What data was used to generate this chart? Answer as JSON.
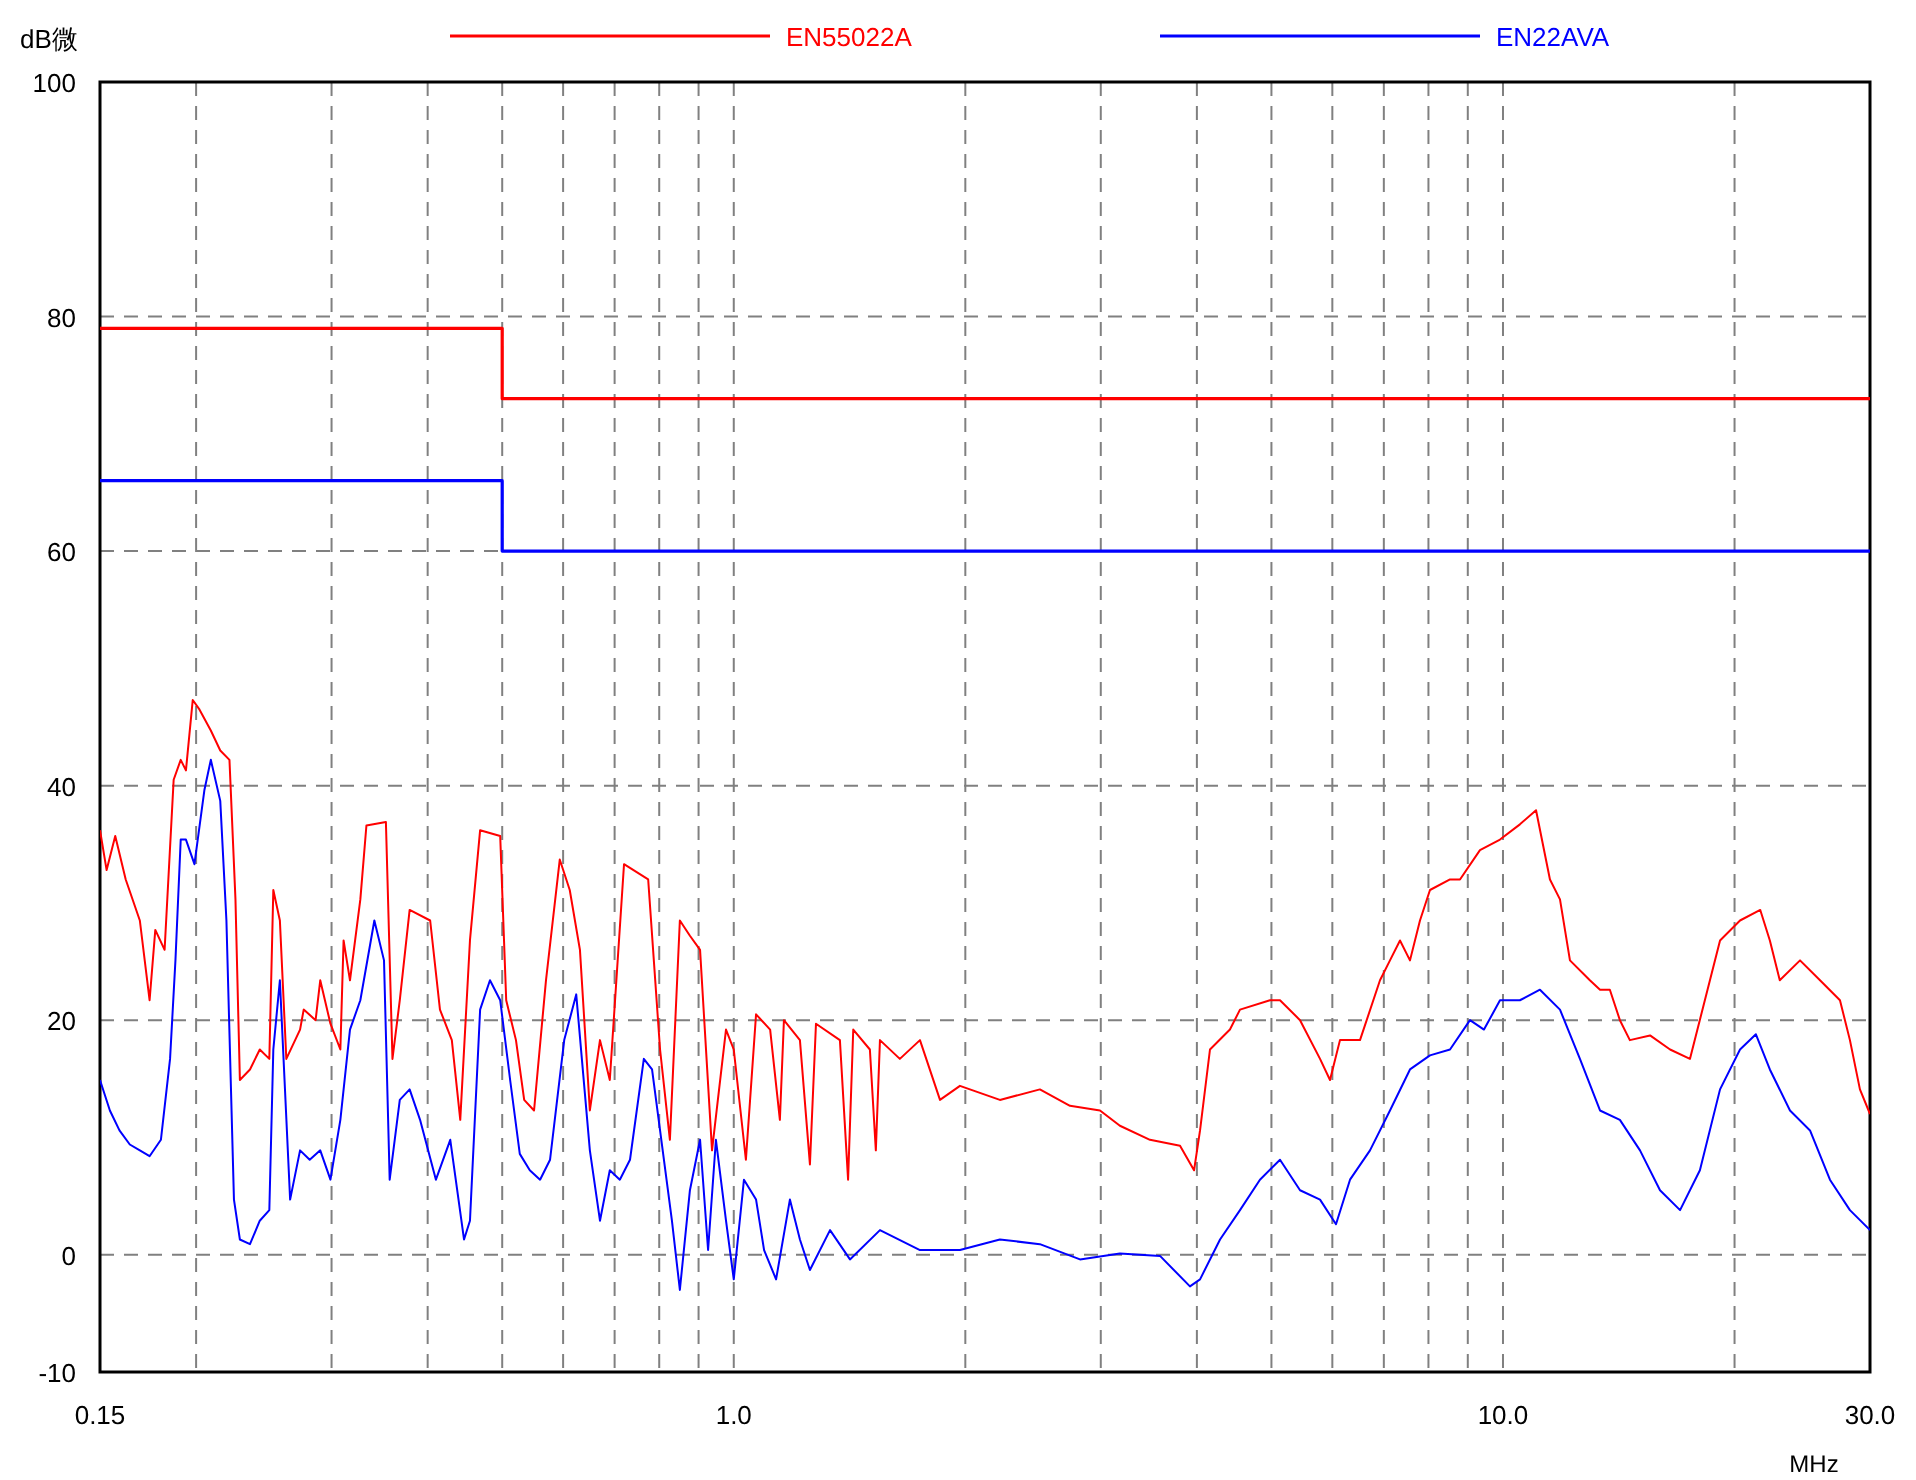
{
  "chart_data": {
    "type": "line",
    "xlabel": "MHz",
    "ylabel": "dB微",
    "log": "x",
    "grid": true,
    "legend": "top",
    "xlim": [
      0.15,
      30
    ],
    "ylim": [
      -10,
      100
    ],
    "xticks": [
      {
        "value": 0.15,
        "label": "0.15"
      },
      {
        "value": 0.2,
        "label": null
      },
      {
        "value": 0.3,
        "label": null
      },
      {
        "value": 0.4,
        "label": null
      },
      {
        "value": 0.5,
        "label": null
      },
      {
        "value": 0.6,
        "label": null
      },
      {
        "value": 0.7,
        "label": null
      },
      {
        "value": 0.8,
        "label": null
      },
      {
        "value": 0.9,
        "label": null
      },
      {
        "value": 1,
        "label": "1.0"
      },
      {
        "value": 2,
        "label": null
      },
      {
        "value": 3,
        "label": null
      },
      {
        "value": 4,
        "label": null
      },
      {
        "value": 5,
        "label": null
      },
      {
        "value": 6,
        "label": null
      },
      {
        "value": 7,
        "label": null
      },
      {
        "value": 8,
        "label": null
      },
      {
        "value": 9,
        "label": null
      },
      {
        "value": 10,
        "label": "10.0"
      },
      {
        "value": 20,
        "label": null
      },
      {
        "value": 30,
        "label": "30.0"
      }
    ],
    "yticks": [
      -10,
      0,
      20,
      40,
      60,
      80,
      100
    ],
    "series": [
      {
        "name": "EN55022A",
        "type": "step",
        "color": "#ff0000",
        "x": [
          0.15,
          0.5,
          30
        ],
        "values": [
          79,
          73,
          73
        ]
      },
      {
        "name": "EN22AVA",
        "type": "step",
        "color": "#0000ff",
        "x": [
          0.15,
          0.5,
          30
        ],
        "values": [
          66,
          60,
          60
        ]
      },
      {
        "color": "#ff0000",
        "x": [
          0.15,
          0.153,
          0.157,
          0.162,
          0.169,
          0.174,
          0.177,
          0.182,
          0.187,
          0.191,
          0.194,
          0.198,
          0.202,
          0.209,
          0.215,
          0.221,
          0.225,
          0.228,
          0.235,
          0.242,
          0.249,
          0.252,
          0.257,
          0.262,
          0.273,
          0.276,
          0.286,
          0.29,
          0.299,
          0.308,
          0.311,
          0.317,
          0.327,
          0.333,
          0.353,
          0.36,
          0.368,
          0.379,
          0.403,
          0.415,
          0.43,
          0.441,
          0.454,
          0.468,
          0.497,
          0.506,
          0.521,
          0.534,
          0.55,
          0.57,
          0.594,
          0.612,
          0.631,
          0.65,
          0.67,
          0.69,
          0.72,
          0.774,
          0.802,
          0.826,
          0.851,
          0.877,
          0.904,
          0.937,
          0.977,
          1.0,
          1.037,
          1.069,
          1.115,
          1.148,
          1.162,
          1.219,
          1.256,
          1.279,
          1.374,
          1.408,
          1.43,
          1.503,
          1.53,
          1.549,
          1.644,
          1.746,
          1.854,
          1.968,
          2.218,
          2.5,
          2.736,
          2.993,
          3.177,
          3.476,
          3.803,
          3.966,
          4.038,
          4.16,
          4.416,
          4.551,
          4.978,
          5.13,
          5.447,
          5.783,
          5.958,
          6.139,
          6.518,
          6.92,
          7.13,
          7.347,
          7.57,
          7.8,
          8.037,
          8.534,
          8.792,
          9.334,
          9.911,
          10.52,
          11.04,
          11.51,
          11.86,
          12.22,
          12.97,
          13.37,
          13.77,
          14.19,
          14.62,
          15.53,
          16.49,
          17.5,
          18.58,
          19.15,
          20.33,
          21.6,
          22.23,
          22.9,
          24.33,
          25.83,
          27.42,
          28.25,
          29.11,
          30
        ],
        "values": [
          36.2,
          32.8,
          35.7,
          32.0,
          28.5,
          21.7,
          27.7,
          26.0,
          40.5,
          42.2,
          41.3,
          47.3,
          46.5,
          44.7,
          43.0,
          42.2,
          30.3,
          14.9,
          15.8,
          17.5,
          16.7,
          31.1,
          28.5,
          16.7,
          19.2,
          20.9,
          20.0,
          23.4,
          19.7,
          17.5,
          26.8,
          23.4,
          30.3,
          36.6,
          36.9,
          16.7,
          21.7,
          29.4,
          28.5,
          20.9,
          18.3,
          11.5,
          26.8,
          36.2,
          35.7,
          21.7,
          18.3,
          13.2,
          12.3,
          23.4,
          33.7,
          31.1,
          26.0,
          12.3,
          18.3,
          14.9,
          33.3,
          32.0,
          17.5,
          9.8,
          28.5,
          27.2,
          26.0,
          8.9,
          19.2,
          17.5,
          8.1,
          20.5,
          19.2,
          11.5,
          20.0,
          18.3,
          7.7,
          19.7,
          18.3,
          6.4,
          19.2,
          17.5,
          8.9,
          18.3,
          16.7,
          18.3,
          13.2,
          14.4,
          13.2,
          14.1,
          12.7,
          12.3,
          11.0,
          9.8,
          9.3,
          7.2,
          10.6,
          17.5,
          19.2,
          20.9,
          21.7,
          21.7,
          20.0,
          16.7,
          14.9,
          18.3,
          18.3,
          23.4,
          25.1,
          26.8,
          25.1,
          28.5,
          31.1,
          32.0,
          32.0,
          34.5,
          35.4,
          36.7,
          37.9,
          32.0,
          30.3,
          25.1,
          23.4,
          22.6,
          22.6,
          20.0,
          18.3,
          18.7,
          17.5,
          16.7,
          23.4,
          26.8,
          28.5,
          29.4,
          26.8,
          23.4,
          25.1,
          23.4,
          21.7,
          18.3,
          14.1,
          12.0
        ]
      },
      {
        "color": "#0000ff",
        "x": [
          0.15,
          0.1545,
          0.159,
          0.164,
          0.169,
          0.174,
          0.18,
          0.185,
          0.188,
          0.191,
          0.194,
          0.199,
          0.205,
          0.209,
          0.215,
          0.219,
          0.224,
          0.228,
          0.235,
          0.242,
          0.249,
          0.252,
          0.257,
          0.265,
          0.273,
          0.281,
          0.29,
          0.299,
          0.308,
          0.317,
          0.327,
          0.341,
          0.351,
          0.357,
          0.368,
          0.379,
          0.391,
          0.41,
          0.428,
          0.446,
          0.454,
          0.468,
          0.482,
          0.497,
          0.512,
          0.527,
          0.543,
          0.56,
          0.577,
          0.602,
          0.624,
          0.65,
          0.67,
          0.69,
          0.711,
          0.733,
          0.764,
          0.783,
          0.802,
          0.831,
          0.851,
          0.877,
          0.904,
          0.926,
          0.948,
          0.977,
          1.0,
          1.031,
          1.069,
          1.095,
          1.135,
          1.183,
          1.219,
          1.256,
          1.334,
          1.416,
          1.549,
          1.746,
          1.968,
          2.218,
          2.5,
          2.819,
          3.177,
          3.582,
          3.918,
          4.038,
          4.287,
          4.551,
          4.831,
          5.13,
          5.447,
          5.783,
          6.066,
          6.326,
          6.716,
          7.13,
          7.57,
          8.037,
          8.534,
          9.059,
          9.447,
          9.911,
          10.52,
          11.17,
          11.86,
          12.59,
          13.37,
          14.19,
          15.07,
          16.0,
          16.99,
          18.03,
          19.15,
          20.33,
          21.32,
          22.23,
          23.61,
          25.07,
          26.61,
          28.25,
          30
        ],
        "values": [
          14.9,
          12.3,
          10.6,
          9.4,
          8.9,
          8.4,
          9.8,
          16.7,
          25.1,
          35.4,
          35.4,
          33.3,
          39.6,
          42.2,
          38.7,
          28.5,
          4.7,
          1.3,
          0.9,
          2.9,
          3.8,
          17.5,
          23.4,
          4.7,
          8.9,
          8.1,
          8.9,
          6.4,
          11.5,
          19.2,
          21.7,
          28.5,
          25.1,
          6.4,
          13.2,
          14.1,
          11.5,
          6.4,
          9.8,
          1.3,
          2.9,
          20.9,
          23.4,
          21.7,
          14.9,
          8.6,
          7.2,
          6.4,
          8.1,
          18.3,
          22.2,
          8.9,
          2.9,
          7.2,
          6.4,
          8.1,
          16.7,
          15.8,
          10.6,
          2.9,
          -3.0,
          5.5,
          9.8,
          0.4,
          9.8,
          2.9,
          -2.1,
          6.4,
          4.7,
          0.4,
          -2.1,
          4.7,
          1.3,
          -1.3,
          2.1,
          -0.4,
          2.1,
          0.4,
          0.4,
          1.3,
          0.9,
          -0.4,
          0.1,
          -0.1,
          -2.7,
          -2.1,
          1.3,
          3.8,
          6.4,
          8.1,
          5.5,
          4.7,
          2.6,
          6.4,
          8.9,
          12.3,
          15.8,
          17.0,
          17.5,
          20.0,
          19.2,
          21.7,
          21.7,
          22.6,
          20.9,
          16.7,
          12.3,
          11.5,
          8.9,
          5.5,
          3.8,
          7.2,
          14.1,
          17.5,
          18.8,
          15.8,
          12.3,
          10.6,
          6.4,
          3.8,
          2.1
        ]
      }
    ]
  }
}
